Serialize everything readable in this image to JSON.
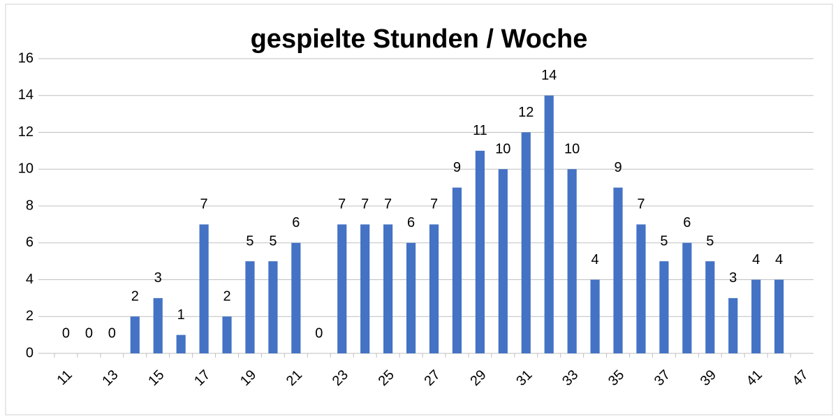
{
  "chart_data": {
    "type": "bar",
    "title": "gespielte Stunden / Woche",
    "categories": [
      "11",
      null,
      "13",
      null,
      "15",
      null,
      "17",
      null,
      "19",
      null,
      "21",
      null,
      "23",
      null,
      "25",
      null,
      "27",
      null,
      "29",
      null,
      "31",
      null,
      "33",
      null,
      "35",
      null,
      "37",
      null,
      "39",
      null,
      "41",
      null,
      "47"
    ],
    "values": [
      0,
      0,
      0,
      2,
      3,
      1,
      7,
      2,
      5,
      5,
      6,
      0,
      7,
      7,
      7,
      6,
      7,
      9,
      11,
      10,
      12,
      14,
      10,
      4,
      9,
      7,
      5,
      6,
      5,
      3,
      4,
      4,
      null
    ],
    "color": "#4472c4",
    "ylim": [
      0,
      16
    ],
    "yticks": [
      0,
      2,
      4,
      6,
      8,
      10,
      12,
      14,
      16
    ],
    "grid": true
  }
}
